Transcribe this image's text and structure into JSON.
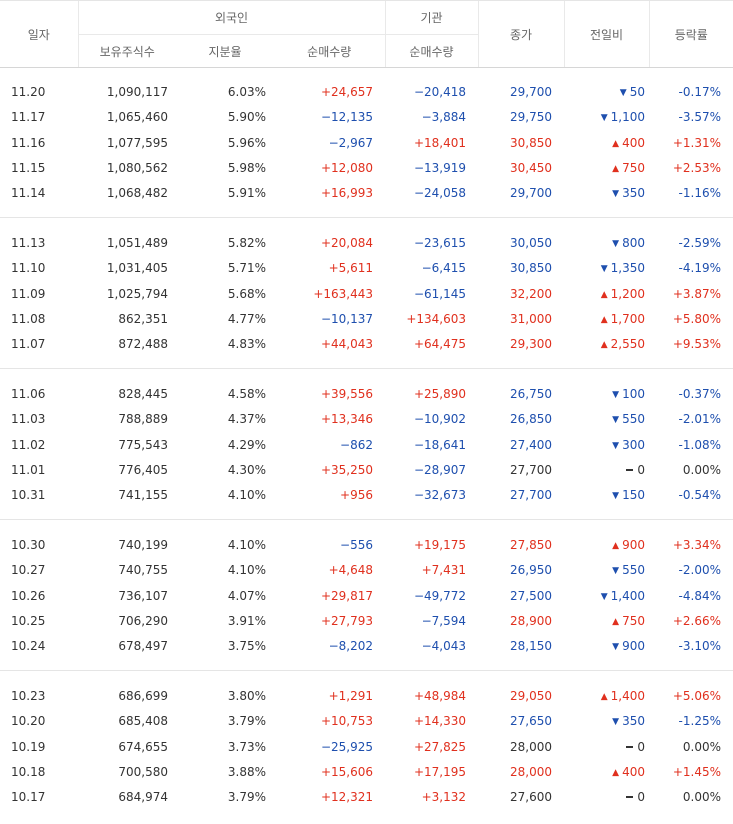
{
  "header": {
    "date": "일자",
    "foreign_group": "외국인",
    "inst_group": "기관",
    "close": "종가",
    "change": "전일비",
    "rate": "등락률",
    "holdings": "보유주식수",
    "share_ratio": "지분율",
    "foreign_net": "순매수량",
    "inst_net": "순매수량"
  },
  "colors": {
    "up": "#e0301e",
    "down": "#1e4fae",
    "neutral": "#333333"
  },
  "rows": [
    {
      "date": "11.20",
      "holdings": "1,090,117",
      "ratio": "6.03%",
      "fnet": "+24,657",
      "inet": "−20,418",
      "close": "29,700",
      "dir": "down",
      "diff": "50",
      "rate": "-0.17%"
    },
    {
      "date": "11.17",
      "holdings": "1,065,460",
      "ratio": "5.90%",
      "fnet": "−12,135",
      "inet": "−3,884",
      "close": "29,750",
      "dir": "down",
      "diff": "1,100",
      "rate": "-3.57%"
    },
    {
      "date": "11.16",
      "holdings": "1,077,595",
      "ratio": "5.96%",
      "fnet": "−2,967",
      "inet": "+18,401",
      "close": "30,850",
      "dir": "up",
      "diff": "400",
      "rate": "+1.31%"
    },
    {
      "date": "11.15",
      "holdings": "1,080,562",
      "ratio": "5.98%",
      "fnet": "+12,080",
      "inet": "−13,919",
      "close": "30,450",
      "dir": "up",
      "diff": "750",
      "rate": "+2.53%"
    },
    {
      "date": "11.14",
      "holdings": "1,068,482",
      "ratio": "5.91%",
      "fnet": "+16,993",
      "inet": "−24,058",
      "close": "29,700",
      "dir": "down",
      "diff": "350",
      "rate": "-1.16%"
    },
    {
      "date": "11.13",
      "holdings": "1,051,489",
      "ratio": "5.82%",
      "fnet": "+20,084",
      "inet": "−23,615",
      "close": "30,050",
      "dir": "down",
      "diff": "800",
      "rate": "-2.59%"
    },
    {
      "date": "11.10",
      "holdings": "1,031,405",
      "ratio": "5.71%",
      "fnet": "+5,611",
      "inet": "−6,415",
      "close": "30,850",
      "dir": "down",
      "diff": "1,350",
      "rate": "-4.19%"
    },
    {
      "date": "11.09",
      "holdings": "1,025,794",
      "ratio": "5.68%",
      "fnet": "+163,443",
      "inet": "−61,145",
      "close": "32,200",
      "dir": "up",
      "diff": "1,200",
      "rate": "+3.87%"
    },
    {
      "date": "11.08",
      "holdings": "862,351",
      "ratio": "4.77%",
      "fnet": "−10,137",
      "inet": "+134,603",
      "close": "31,000",
      "dir": "up",
      "diff": "1,700",
      "rate": "+5.80%"
    },
    {
      "date": "11.07",
      "holdings": "872,488",
      "ratio": "4.83%",
      "fnet": "+44,043",
      "inet": "+64,475",
      "close": "29,300",
      "dir": "up",
      "diff": "2,550",
      "rate": "+9.53%"
    },
    {
      "date": "11.06",
      "holdings": "828,445",
      "ratio": "4.58%",
      "fnet": "+39,556",
      "inet": "+25,890",
      "close": "26,750",
      "dir": "down",
      "diff": "100",
      "rate": "-0.37%"
    },
    {
      "date": "11.03",
      "holdings": "788,889",
      "ratio": "4.37%",
      "fnet": "+13,346",
      "inet": "−10,902",
      "close": "26,850",
      "dir": "down",
      "diff": "550",
      "rate": "-2.01%"
    },
    {
      "date": "11.02",
      "holdings": "775,543",
      "ratio": "4.29%",
      "fnet": "−862",
      "inet": "−18,641",
      "close": "27,400",
      "dir": "down",
      "diff": "300",
      "rate": "-1.08%"
    },
    {
      "date": "11.01",
      "holdings": "776,405",
      "ratio": "4.30%",
      "fnet": "+35,250",
      "inet": "−28,907",
      "close": "27,700",
      "dir": "flat",
      "diff": "0",
      "rate": "0.00%"
    },
    {
      "date": "10.31",
      "holdings": "741,155",
      "ratio": "4.10%",
      "fnet": "+956",
      "inet": "−32,673",
      "close": "27,700",
      "dir": "down",
      "diff": "150",
      "rate": "-0.54%"
    },
    {
      "date": "10.30",
      "holdings": "740,199",
      "ratio": "4.10%",
      "fnet": "−556",
      "inet": "+19,175",
      "close": "27,850",
      "dir": "up",
      "diff": "900",
      "rate": "+3.34%"
    },
    {
      "date": "10.27",
      "holdings": "740,755",
      "ratio": "4.10%",
      "fnet": "+4,648",
      "inet": "+7,431",
      "close": "26,950",
      "dir": "down",
      "diff": "550",
      "rate": "-2.00%"
    },
    {
      "date": "10.26",
      "holdings": "736,107",
      "ratio": "4.07%",
      "fnet": "+29,817",
      "inet": "−49,772",
      "close": "27,500",
      "dir": "down",
      "diff": "1,400",
      "rate": "-4.84%"
    },
    {
      "date": "10.25",
      "holdings": "706,290",
      "ratio": "3.91%",
      "fnet": "+27,793",
      "inet": "−7,594",
      "close": "28,900",
      "dir": "up",
      "diff": "750",
      "rate": "+2.66%"
    },
    {
      "date": "10.24",
      "holdings": "678,497",
      "ratio": "3.75%",
      "fnet": "−8,202",
      "inet": "−4,043",
      "close": "28,150",
      "dir": "down",
      "diff": "900",
      "rate": "-3.10%"
    },
    {
      "date": "10.23",
      "holdings": "686,699",
      "ratio": "3.80%",
      "fnet": "+1,291",
      "inet": "+48,984",
      "close": "29,050",
      "dir": "up",
      "diff": "1,400",
      "rate": "+5.06%"
    },
    {
      "date": "10.20",
      "holdings": "685,408",
      "ratio": "3.79%",
      "fnet": "+10,753",
      "inet": "+14,330",
      "close": "27,650",
      "dir": "down",
      "diff": "350",
      "rate": "-1.25%"
    },
    {
      "date": "10.19",
      "holdings": "674,655",
      "ratio": "3.73%",
      "fnet": "−25,925",
      "inet": "+27,825",
      "close": "28,000",
      "dir": "flat",
      "diff": "0",
      "rate": "0.00%"
    },
    {
      "date": "10.18",
      "holdings": "700,580",
      "ratio": "3.88%",
      "fnet": "+15,606",
      "inet": "+17,195",
      "close": "28,000",
      "dir": "up",
      "diff": "400",
      "rate": "+1.45%"
    },
    {
      "date": "10.17",
      "holdings": "684,974",
      "ratio": "3.79%",
      "fnet": "+12,321",
      "inet": "+3,132",
      "close": "27,600",
      "dir": "flat",
      "diff": "0",
      "rate": "0.00%"
    }
  ]
}
